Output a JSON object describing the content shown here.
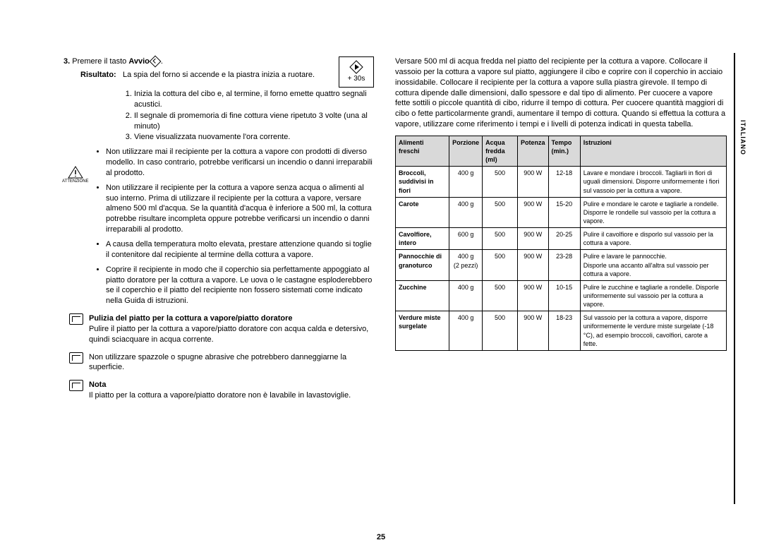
{
  "language_tab": "ITALIANO",
  "page_number": "25",
  "left": {
    "step_num": "3.",
    "step_text_a": "Premere il tasto ",
    "step_text_bold": "Avvio",
    "step_text_b": " ",
    "time_box": "+ 30s",
    "risultato_label": "Risultato:",
    "risultato_text": "La spia del forno si accende e la piastra inizia a ruotare.",
    "numbered": [
      "Inizia la cottura del cibo e,\nal termine, il forno emette quattro segnali acustici.",
      "Il segnale di promemoria di fine cottura viene ripetuto 3 volte (una al minuto)",
      "Viene visualizzata nuovamente l'ora corrente."
    ],
    "attenzione": "ATTENZIONE",
    "bullets": [
      "Non utilizzare mai il recipiente per la cottura a vapore con prodotti di diverso modello.\nIn caso contrario, potrebbe verificarsi un incendio o danni irreparabili al prodotto.",
      "Non utilizzare il recipiente per la cottura a vapore senza acqua o alimenti al suo interno.\nPrima di utilizzare il recipiente per la cottura a vapore, versare almeno 500 ml d'acqua.\nSe la quantità d'acqua è inferiore a 500 ml, la cottura potrebbe risultare incompleta oppure potrebbe verificarsi un incendio o danni irreparabili al prodotto.",
      "A causa della temperatura molto elevata, prestare attenzione quando si toglie il contenitore dal recipiente al termine della cottura a vapore.",
      "Coprire il recipiente in modo che il coperchio sia perfettamente appoggiato al piatto doratore per la cottura a vapore.\nLe uova o le castagne esploderebbero se il coperchio e il piatto del recipiente non fossero sistemati come indicato nella Guida di istruzioni."
    ],
    "note1_title": "Pulizia del piatto per la cottura a vapore/piatto doratore",
    "note1_text": "Pulire il piatto per la cottura a vapore/piatto doratore con acqua calda e detersivo, quindi sciacquare in acqua corrente.",
    "note2_text": "Non utilizzare spazzole o spugne abrasive che potrebbero danneggiarne la superficie.",
    "note3_title": "Nota",
    "note3_text": "Il piatto per la cottura a vapore/piatto doratore non è lavabile in lavastoviglie."
  },
  "right": {
    "intro": "Versare 500 ml di acqua fredda nel piatto del recipiente per la cottura a vapore. Collocare il vassoio per la cottura a vapore sul piatto, aggiungere il cibo e coprire con il coperchio in acciaio inossidabile. Collocare il recipiente per la cottura a vapore sulla piastra girevole. Il tempo di cottura dipende dalle dimensioni, dallo spessore e dal tipo di alimento. Per cuocere a vapore fette sottili o piccole quantità di cibo, ridurre il tempo di cottura. Per cuocere quantità maggiori di cibo o fette particolarmente grandi, aumentare il tempo di cottura. Quando si effettua la cottura a vapore, utilizzare come riferimento i tempi e i livelli di potenza indicati in questa tabella.",
    "headers": [
      "Alimenti freschi",
      "Porzione",
      "Acqua fredda (ml)",
      "Potenza",
      "Tempo (min.)",
      "Istruzioni"
    ],
    "rows": [
      {
        "food": "Broccoli, suddivisi in fiori",
        "portion": "400 g",
        "water": "500",
        "power": "900 W",
        "time": "12-18",
        "instr": "Lavare e mondare i broccoli. Tagliarli in fiori di uguali dimensioni. Disporre uniformemente i fiori sul vassoio per la cottura a vapore."
      },
      {
        "food": "Carote",
        "portion": "400 g",
        "water": "500",
        "power": "900 W",
        "time": "15-20",
        "instr": "Pulire e mondare le carote e tagliarle a rondelle. Disporre le rondelle sul vassoio per la cottura a vapore."
      },
      {
        "food": "Cavolfiore, intero",
        "portion": "600 g",
        "water": "500",
        "power": "900 W",
        "time": "20-25",
        "instr": "Pulire il cavolfiore e disporlo sul vassoio per la cottura a vapore."
      },
      {
        "food": "Pannocchie di granoturco",
        "portion": "400 g\n(2 pezzi)",
        "water": "500",
        "power": "900 W",
        "time": "23-28",
        "instr": "Pulire e lavare le pannocchie.\nDisporle una accanto all'altra sul vassoio per cottura a vapore."
      },
      {
        "food": "Zucchine",
        "portion": "400 g",
        "water": "500",
        "power": "900 W",
        "time": "10-15",
        "instr": "Pulire le zucchine e tagliarle a rondelle. Disporle uniformemente sul vassoio per la cottura a vapore."
      },
      {
        "food": "Verdure miste surgelate",
        "portion": "400 g",
        "water": "500",
        "power": "900 W",
        "time": "18-23",
        "instr": "Sul vassoio per la cottura a vapore, disporre uniformemente le verdure miste surgelate (-18 °C), ad esempio broccoli, cavolfiori, carote a fette."
      }
    ]
  },
  "colors": {
    "text": "#000000",
    "bg": "#ffffff",
    "table_header_bg": "#d9d9d9",
    "border": "#000000"
  }
}
